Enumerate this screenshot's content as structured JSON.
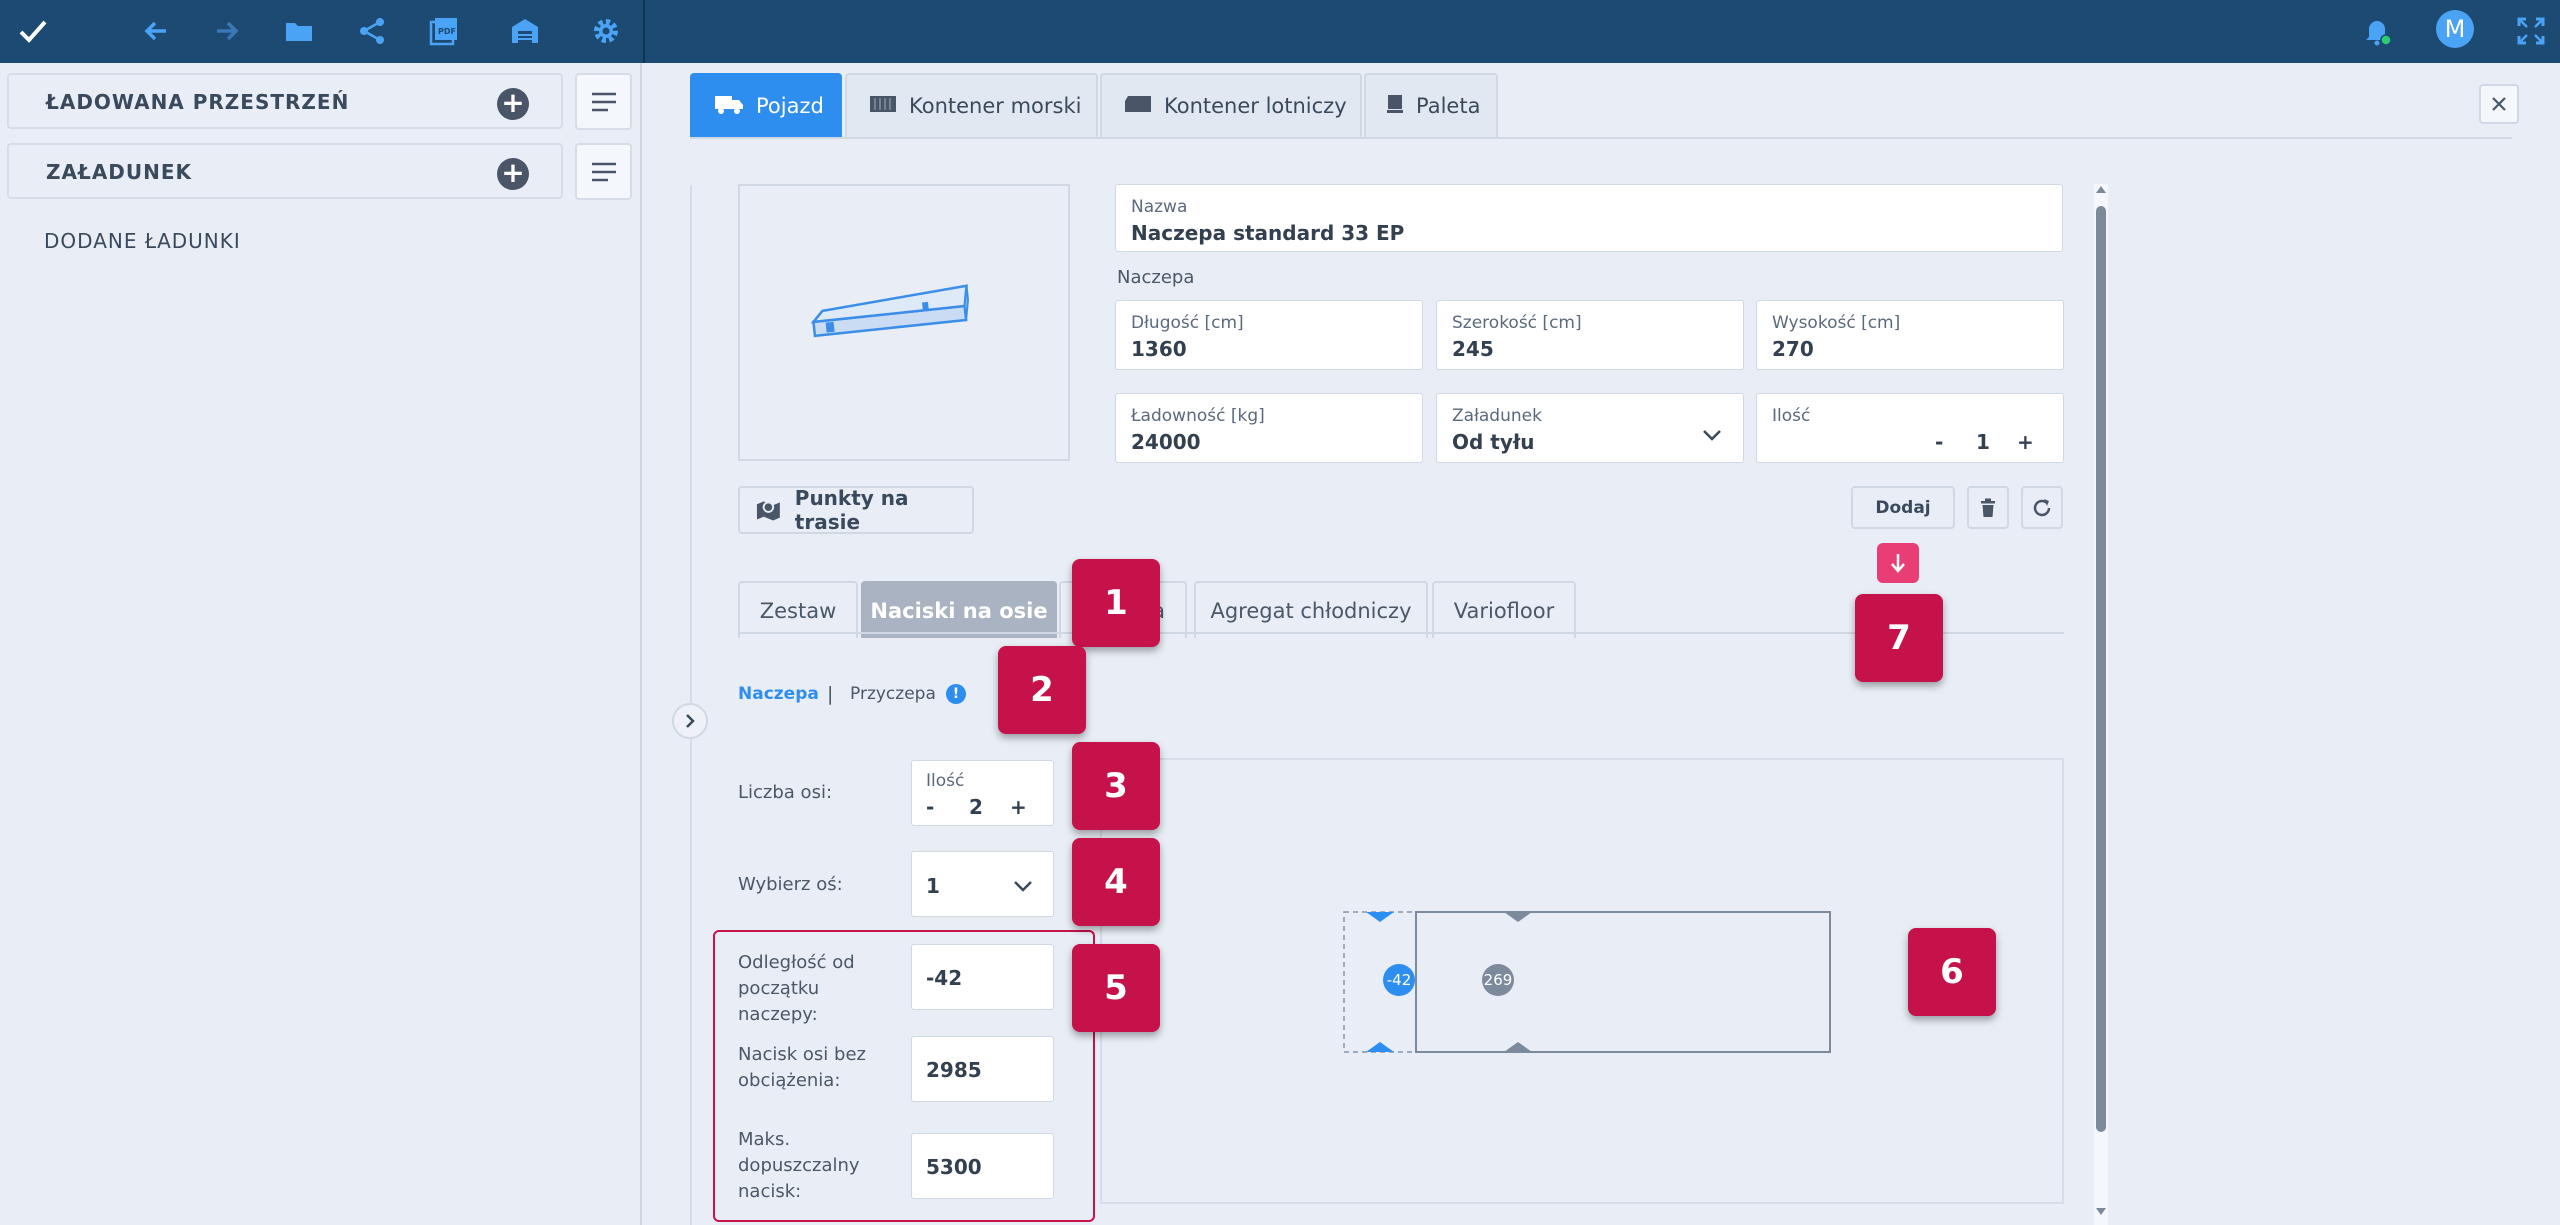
{
  "topbar": {
    "icons": [
      "check-icon",
      "back-arrow-icon",
      "forward-arrow-icon",
      "folder-icon",
      "share-icon",
      "pdf-icon",
      "warehouse-icon",
      "gear-icon",
      "bell-icon",
      "fullscreen-icon"
    ],
    "avatar": "M",
    "colors": {
      "bar": "#1c4a72",
      "icon": "#4aa3f5",
      "check": "#ffffff"
    }
  },
  "sidebar": {
    "rows": [
      {
        "label": "ŁADOWANA PRZESTRZEŃ"
      },
      {
        "label": "ZAŁADUNEK"
      }
    ],
    "added_label": "DODANE ŁADUNKI"
  },
  "main": {
    "tabs": [
      "Pojazd",
      "Kontener morski",
      "Kontener lotniczy",
      "Paleta"
    ],
    "active_tab": "Pojazd",
    "name_field": {
      "label": "Nazwa",
      "value": "Naczepa standard 33 EP"
    },
    "section_label": "Naczepa",
    "fields": {
      "dlugosc": {
        "label": "Długość [cm]",
        "value": "1360"
      },
      "szerokosc": {
        "label": "Szerokość [cm]",
        "value": "245"
      },
      "wysokosc": {
        "label": "Wysokość [cm]",
        "value": "270"
      },
      "ladownosc": {
        "label": "Ładowność [kg]",
        "value": "24000"
      },
      "zaladunek": {
        "label": "Załadunek",
        "value": "Od tyłu"
      },
      "ilosc": {
        "label": "Ilość",
        "minus": "-",
        "value": "1",
        "plus": "+"
      }
    },
    "route_button": "Punkty na trasie",
    "add_button": "Dodaj",
    "subtabs": [
      "Zestaw",
      "Naciski na osie",
      "a",
      "Agregat chłodniczy",
      "Variofloor"
    ],
    "active_subtab": "Naciski na osie",
    "toggle": {
      "left": "Naczepa",
      "sep": "|",
      "right": "Przyczepa"
    },
    "axles": {
      "count_label": "Liczba osi:",
      "count_inner_label": "Ilość",
      "count_minus": "-",
      "count_value": "2",
      "count_plus": "+",
      "select_label": "Wybierz oś:",
      "select_value": "1",
      "distance_label": "Odległość od początku naczepy:",
      "distance_value": "-42",
      "empty_load_label": "Nacisk osi bez obciążenia:",
      "empty_load_value": "2985",
      "max_load_label": "Maks. dopuszczalny nacisk:",
      "max_load_value": "5300"
    },
    "diagram": {
      "axle1": "-42",
      "axle2": "269"
    },
    "badges": [
      "1",
      "2",
      "3",
      "4",
      "5",
      "6",
      "7"
    ],
    "accent_color": "#2e8ef0",
    "badge_color": "#c5124b"
  }
}
